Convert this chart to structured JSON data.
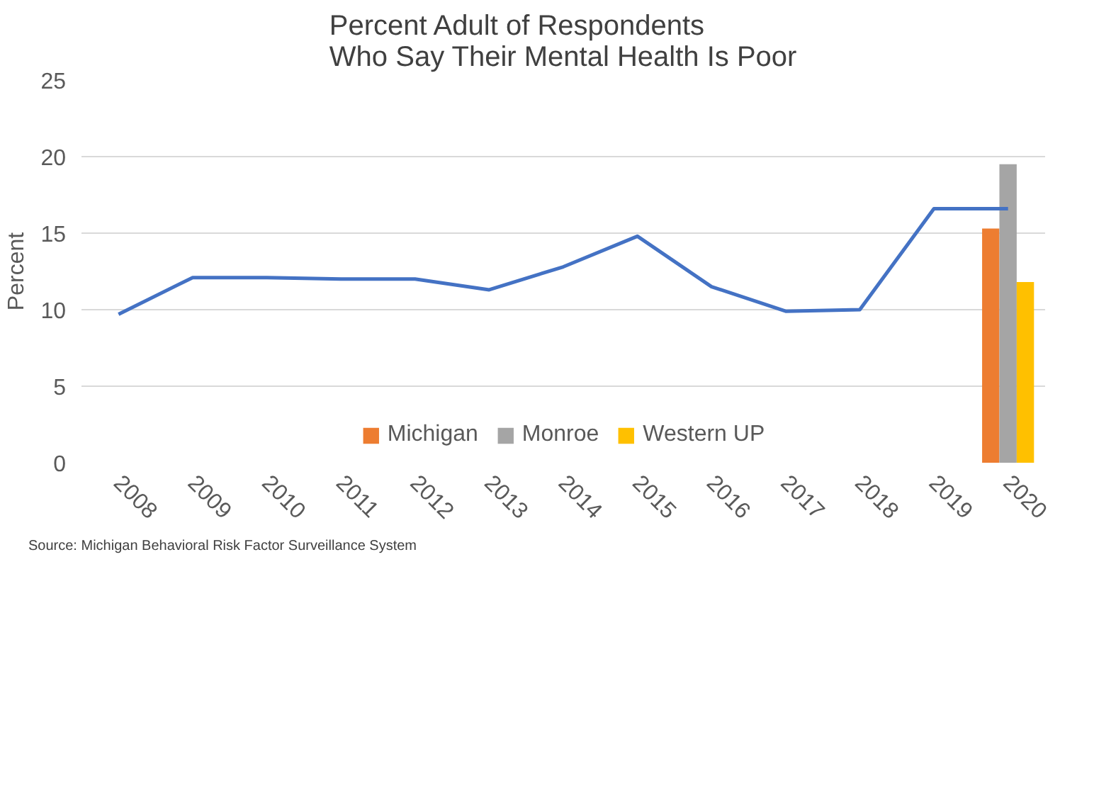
{
  "chart_data": {
    "type": "bar",
    "title": "Percent Adult of Respondents\nWho Say Their Mental Health Is Poor",
    "ylabel": "Percent",
    "annotations": [
      "Source: Michigan Behavioral Risk Factor Surveillance System"
    ],
    "categories": [
      "2008",
      "2009",
      "2010",
      "2011",
      "2012",
      "2013",
      "2014",
      "2015",
      "2016",
      "2017",
      "2018",
      "2019",
      "2020"
    ],
    "series": [
      {
        "name": "Michigan",
        "color": "#ed7d31",
        "values": [
          null,
          null,
          null,
          null,
          null,
          null,
          null,
          null,
          null,
          null,
          null,
          null,
          15.3
        ]
      },
      {
        "name": "Monroe",
        "color": "#a5a5a5",
        "values": [
          null,
          null,
          null,
          null,
          null,
          null,
          null,
          null,
          null,
          null,
          null,
          null,
          19.5
        ]
      },
      {
        "name": "Western UP",
        "color": "#ffc000",
        "values": [
          null,
          null,
          null,
          null,
          null,
          null,
          null,
          null,
          null,
          null,
          null,
          null,
          11.8
        ]
      },
      {
        "type": "line",
        "color": "#4472c4",
        "values": [
          9.7,
          12.1,
          12.1,
          12.0,
          12.0,
          11.3,
          12.8,
          14.8,
          11.5,
          9.9,
          10.0,
          16.6,
          16.6
        ]
      }
    ],
    "ylim": [
      0,
      25
    ],
    "yticks": [
      0,
      5,
      10,
      15,
      20,
      25
    ],
    "grid": "y",
    "legend": "bottom"
  }
}
